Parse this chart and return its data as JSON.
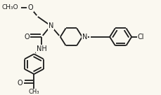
{
  "bg_color": "#faf8f0",
  "line_color": "#1a1a1a",
  "lw": 1.3,
  "fs": 6.5,
  "xlim": [
    0.0,
    10.0
  ],
  "ylim": [
    0.0,
    6.5
  ],
  "figsize": [
    2.3,
    1.36
  ],
  "dpi": 100
}
